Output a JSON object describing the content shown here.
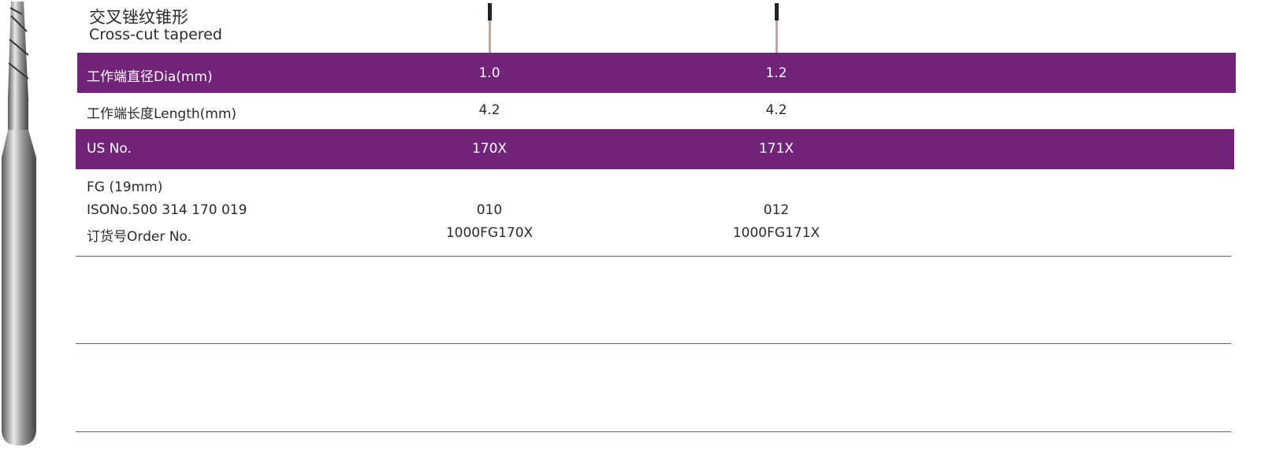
{
  "header": {
    "title_cn": "交叉锉纹锥形",
    "title_en": "Cross-cut tapered"
  },
  "table": {
    "rows": [
      {
        "label": "工作端直径Dia(mm)",
        "values": [
          "1.0",
          "1.2"
        ]
      },
      {
        "label": "工作端长度Length(mm)",
        "values": [
          "4.2",
          "4.2"
        ]
      },
      {
        "label": "US No.",
        "values": [
          "170X",
          "171X"
        ]
      }
    ],
    "order_block": {
      "labels": [
        "FG (19mm)",
        "ISONo.500 314 170 019",
        "订货号Order No."
      ],
      "iso": [
        "010",
        "012"
      ],
      "order": [
        "1000FG170X",
        "1000FG171X"
      ]
    }
  }
}
